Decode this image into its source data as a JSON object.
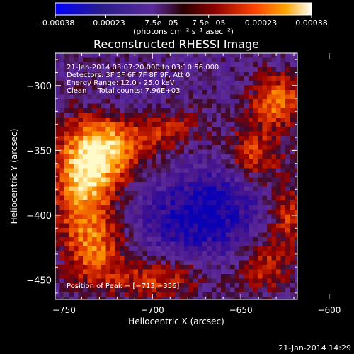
{
  "chart_data": {
    "type": "heatmap",
    "title": "Reconstructed RHESSI Image",
    "xlabel": "Heliocentric X (arcsec)",
    "ylabel": "Heliocentric Y (arcsec)",
    "xlim": [
      -755,
      -618
    ],
    "ylim": [
      -465,
      -275
    ],
    "x_ticks": [
      -750,
      -700,
      -650,
      -600
    ],
    "x_tick_labels": [
      "−750",
      "−700",
      "−650",
      "−600"
    ],
    "y_ticks": [
      -300,
      -350,
      -400,
      -450
    ],
    "y_tick_labels": [
      "−300",
      "−350",
      "−400",
      "−450"
    ],
    "colorbar": {
      "range": [
        -0.00038,
        0.00038
      ],
      "ticks": [
        -0.00038,
        -0.00023,
        -7.5e-05,
        7.5e-05,
        0.00023,
        0.00038
      ],
      "tick_labels": [
        "−0.00038",
        "−0.00023",
        "−7.5e−05",
        "7.5e−05",
        "0.00023",
        "0.00038"
      ],
      "units": "(photons cm⁻² s⁻¹ asec⁻²)",
      "colors": [
        "#0000ff",
        "#4b0082",
        "#5a2a9a",
        "#8b0000",
        "#ff4500",
        "#ffa500",
        "#ffffff"
      ]
    },
    "annotations": [
      "21-Jan-2014 03:07:20.000 to 03:10:56.000",
      "Detectors: 3F 5F 6F 7F 8F 9F, Att 0",
      "Energy Range: 12.0 - 25.0 keV",
      "Clean     Total counts: 7.96E+03"
    ],
    "peak_label": "Position of Peak = [−713,−356]",
    "peak": [
      -713,
      -356
    ],
    "grid": false
  },
  "footer": {
    "timestamp": "21-Jan-2014 14:29"
  }
}
